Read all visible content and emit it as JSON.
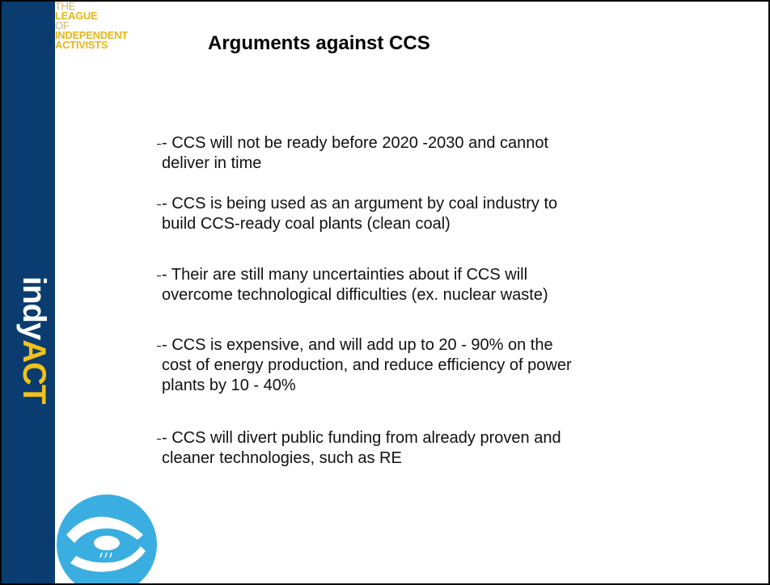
{
  "logo": {
    "lines": [
      "THE",
      "LEAGUE",
      "OF",
      "INDEPENDENT",
      "ACTIVISTS"
    ]
  },
  "brand": {
    "part1": "indy",
    "part2": "ACT"
  },
  "slide": {
    "title": "Arguments against CCS",
    "bullets": [
      {
        "lines": [
          "- CCS will not be ready before 2020 -2030 and cannot",
          "deliver in time"
        ]
      },
      {
        "lines": [
          "- CCS is being used as an argument by coal industry to",
          "build CCS-ready coal plants (clean coal)"
        ]
      },
      {
        "lines": [
          "- Their are still many uncertainties about if CCS will",
          "overcome technological difficulties (ex. nuclear waste)"
        ]
      },
      {
        "lines": [
          "- CCS is expensive, and will add up to 20 - 90% on the",
          "cost of energy production, and reduce efficiency of power",
          "plants by 10 - 40%"
        ]
      },
      {
        "lines": [
          "- CCS will divert public funding from already proven and",
          "cleaner technologies, such as RE"
        ]
      }
    ]
  }
}
